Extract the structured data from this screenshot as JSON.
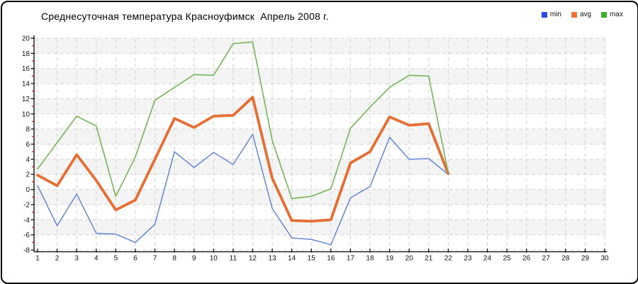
{
  "chart_data": {
    "type": "line",
    "title": "Среднесуточная температура Красноуфимск  Апрель 2008 г.",
    "xlabel": "",
    "ylabel": "",
    "xlim": [
      1,
      30
    ],
    "ylim": [
      -8,
      20
    ],
    "ytick_step": 2,
    "x": [
      1,
      2,
      3,
      4,
      5,
      6,
      7,
      8,
      9,
      10,
      11,
      12,
      13,
      14,
      15,
      16,
      17,
      18,
      19,
      20,
      21,
      22
    ],
    "xtick_labels": [
      "1",
      "2",
      "3",
      "4",
      "5",
      "6",
      "7",
      "8",
      "9",
      "10",
      "11",
      "12",
      "13",
      "14",
      "15",
      "16",
      "17",
      "18",
      "19",
      "20",
      "21",
      "22",
      "23",
      "24",
      "25",
      "26",
      "27",
      "28",
      "29",
      "30"
    ],
    "grid": "dashed",
    "legend_position": "top-right",
    "series": [
      {
        "name": "min",
        "line_color": "#5b7edc",
        "legend_color": "#2a4bdb",
        "line_width": 1.4,
        "values": [
          0.5,
          -4.8,
          -0.6,
          -5.8,
          -5.9,
          -7.0,
          -4.6,
          5.0,
          2.9,
          4.9,
          3.3,
          7.3,
          -2.5,
          -6.4,
          -6.6,
          -7.3,
          -1.1,
          0.4,
          6.9,
          4.0,
          4.1,
          2.0
        ]
      },
      {
        "name": "avg",
        "line_color": "#e56e35",
        "legend_color": "#ed7339",
        "line_width": 3.8,
        "values": [
          1.9,
          0.5,
          4.6,
          1.2,
          -2.7,
          -1.4,
          4.0,
          9.4,
          8.2,
          9.7,
          9.8,
          12.2,
          1.5,
          -4.1,
          -4.2,
          -4.0,
          3.5,
          5.0,
          9.6,
          8.5,
          8.7,
          2.1
        ]
      },
      {
        "name": "max",
        "line_color": "#76b457",
        "legend_color": "#3fae28",
        "line_width": 1.6,
        "values": [
          2.7,
          6.2,
          9.7,
          8.4,
          -0.9,
          4.3,
          11.8,
          13.5,
          15.2,
          15.1,
          19.3,
          19.5,
          6.5,
          -1.2,
          -0.9,
          0.1,
          8.1,
          10.9,
          13.5,
          15.1,
          15.0,
          2.2
        ]
      }
    ],
    "style": {
      "grid_color": "#d2d2d2",
      "band_color": "#f4f4f4",
      "axis_color": "#000000",
      "minor_tick_color": "#cc1111",
      "tick_label_color": "#111111"
    }
  }
}
